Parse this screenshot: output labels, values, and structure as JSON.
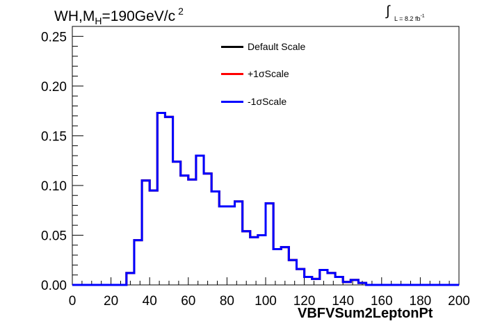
{
  "title": {
    "prefix": "WH,M",
    "subscript": "H",
    "suffix": "=190GeV/c",
    "superscript": "2"
  },
  "luminosity": {
    "integral_symbol": "∫",
    "text": "L = 8.2 fb",
    "superscript": "-1"
  },
  "legend": [
    {
      "label": "Default Scale",
      "color": "#000000"
    },
    {
      "label": "+1σScale",
      "color": "#ff0000"
    },
    {
      "label": "-1σScale",
      "color": "#0000ff"
    }
  ],
  "chart_data": {
    "type": "line",
    "xlabel": "VBFVSum2LeptonPt",
    "ylabel": "",
    "xlim": [
      0,
      200
    ],
    "ylim": [
      0,
      0.26
    ],
    "x_ticks": [
      "0",
      "20",
      "40",
      "60",
      "80",
      "100",
      "120",
      "140",
      "160",
      "180",
      "200"
    ],
    "y_ticks": [
      "0.00",
      "0.05",
      "0.10",
      "0.15",
      "0.20",
      "0.25"
    ],
    "bin_edges": [
      0,
      4,
      8,
      12,
      16,
      20,
      24,
      28,
      32,
      36,
      40,
      44,
      48,
      52,
      56,
      60,
      64,
      68,
      72,
      76,
      80,
      84,
      88,
      92,
      96,
      100,
      104,
      108,
      112,
      116,
      120,
      124,
      128,
      132,
      136,
      140,
      144,
      148,
      152,
      156,
      160,
      164,
      168,
      172,
      176,
      180,
      184,
      188,
      192,
      196,
      200
    ],
    "series": [
      {
        "name": "Default Scale",
        "color": "#000000",
        "values": [
          0,
          0,
          0,
          0,
          0,
          0,
          0,
          0.012,
          0.045,
          0.105,
          0.095,
          0.173,
          0.169,
          0.124,
          0.11,
          0.106,
          0.13,
          0.112,
          0.094,
          0.079,
          0.079,
          0.084,
          0.054,
          0.048,
          0.05,
          0.082,
          0.036,
          0.038,
          0.025,
          0.016,
          0.008,
          0.006,
          0.015,
          0.012,
          0.008,
          0.003,
          0.005,
          0.002,
          0,
          0,
          0,
          0,
          0,
          0,
          0,
          0,
          0,
          0,
          0,
          0
        ]
      },
      {
        "name": "+1σScale",
        "color": "#ff0000",
        "values": [
          0,
          0,
          0,
          0,
          0,
          0,
          0,
          0.012,
          0.045,
          0.105,
          0.095,
          0.173,
          0.169,
          0.124,
          0.11,
          0.106,
          0.13,
          0.112,
          0.094,
          0.079,
          0.079,
          0.084,
          0.054,
          0.048,
          0.05,
          0.082,
          0.036,
          0.038,
          0.025,
          0.016,
          0.008,
          0.006,
          0.015,
          0.012,
          0.008,
          0.003,
          0.005,
          0.002,
          0,
          0,
          0,
          0,
          0,
          0,
          0,
          0,
          0,
          0,
          0,
          0
        ]
      },
      {
        "name": "-1σScale",
        "color": "#0000ff",
        "values": [
          0,
          0,
          0,
          0,
          0,
          0,
          0,
          0.012,
          0.045,
          0.105,
          0.095,
          0.173,
          0.169,
          0.124,
          0.11,
          0.106,
          0.13,
          0.112,
          0.094,
          0.079,
          0.079,
          0.084,
          0.054,
          0.048,
          0.05,
          0.082,
          0.036,
          0.038,
          0.025,
          0.016,
          0.008,
          0.006,
          0.015,
          0.012,
          0.008,
          0.003,
          0.005,
          0.002,
          0,
          0,
          0,
          0,
          0,
          0,
          0,
          0,
          0,
          0,
          0,
          0
        ]
      }
    ]
  }
}
